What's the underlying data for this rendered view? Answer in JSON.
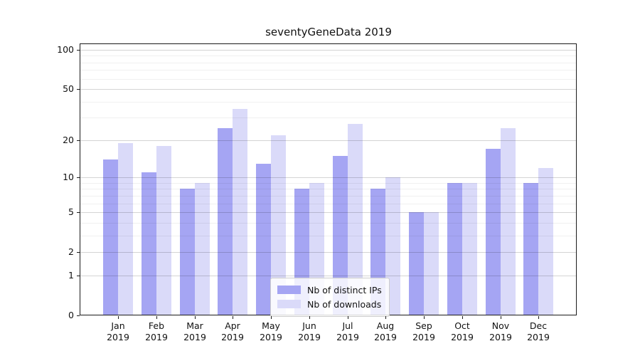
{
  "title": "seventyGeneData 2019",
  "chart_data": {
    "type": "bar",
    "title": "seventyGeneData 2019",
    "categories": [
      "Jan",
      "Feb",
      "Mar",
      "Apr",
      "May",
      "Jun",
      "Jul",
      "Aug",
      "Sep",
      "Oct",
      "Nov",
      "Dec"
    ],
    "year": "2019",
    "series": [
      {
        "name": "Nb of distinct IPs",
        "color": "#a5a5f3",
        "values": [
          14,
          11,
          8,
          25,
          13,
          8,
          15,
          8,
          5,
          9,
          17,
          9
        ]
      },
      {
        "name": "Nb of downloads",
        "color": "#dadaf9",
        "values": [
          19,
          18,
          9,
          35,
          22,
          9,
          27,
          10,
          5,
          9,
          25,
          12
        ]
      }
    ],
    "xlabel": "",
    "ylabel": "",
    "y_scale": "log1p",
    "y_ticks": [
      100,
      50,
      20,
      10,
      5,
      2,
      1,
      0
    ],
    "y_minor_gridlines": [
      90,
      80,
      70,
      60,
      40,
      30,
      9,
      8,
      7,
      6,
      4,
      3
    ],
    "ylim": [
      0,
      113
    ],
    "grid": "on",
    "grid_major_color": "rgba(0,0,0,0.17)",
    "grid_minor_color": "rgba(0,0,0,0.06)",
    "legend_position": "lower center"
  }
}
